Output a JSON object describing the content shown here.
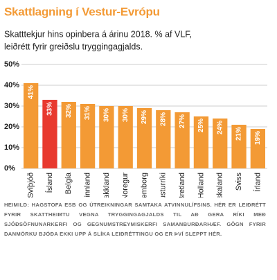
{
  "chart_data": {
    "type": "bar",
    "title": "Skattlagning í Vestur-Evrópu",
    "subtitle": [
      "Skatttekjur hins opinbera á árinu 2018. % af VLF,",
      "leiðrétt fyrir greiðslu tryggingagjalds."
    ],
    "categories": [
      "Svíþjóð",
      "Ísland",
      "Belgía",
      "Finnland",
      "Frakkland",
      "Noregur",
      "Lúxemborg",
      "Austurríki",
      "Bretland",
      "Holland",
      "Þýskaland",
      "Sviss",
      "Írland"
    ],
    "values": [
      41,
      33,
      32,
      31,
      30,
      30,
      29,
      28,
      27,
      25,
      24,
      21,
      19
    ],
    "value_labels": [
      "41%",
      "33%",
      "32%",
      "31%",
      "30%",
      "30%",
      "29%",
      "28%",
      "27%",
      "25%",
      "24%",
      "21%",
      "19%"
    ],
    "colors": [
      "#f39a35",
      "#e8392f",
      "#f39a35",
      "#f39a35",
      "#f39a35",
      "#f39a35",
      "#f39a35",
      "#f39a35",
      "#f39a35",
      "#f39a35",
      "#f39a35",
      "#f39a35",
      "#f39a35"
    ],
    "ylim": [
      0,
      50
    ],
    "yticks": [
      {
        "value": 0,
        "label": "0%"
      },
      {
        "value": 10,
        "label": "10%"
      },
      {
        "value": 20,
        "label": "20%"
      },
      {
        "value": 30,
        "label": "30%"
      },
      {
        "value": 40,
        "label": "40%"
      },
      {
        "value": 50,
        "label": "50%"
      }
    ],
    "grid": true,
    "source": "HEIMILD: HAGSTOFA ESB OG ÚTREIKNINGAR SAMTAKA ATVINNULÍFSINS. HÉR ER LEIÐRÉTT FYRIR SKATTHEIMTU VEGNA TRYGGINGAGJALDS TIL AÐ GERA RÍKI MEÐ SJÓÐSÖFNUNARKERFI OG GEGNUMSTREYMISKERFI SAMANBURÐARHÆF. GÖGN FYRIR DANMÖRKU BJÓÐA EKKI UPP Á SLÍKA LEIÐRÉTTINGU OG ER ÞVÍ SLEPPT HÉR."
  }
}
